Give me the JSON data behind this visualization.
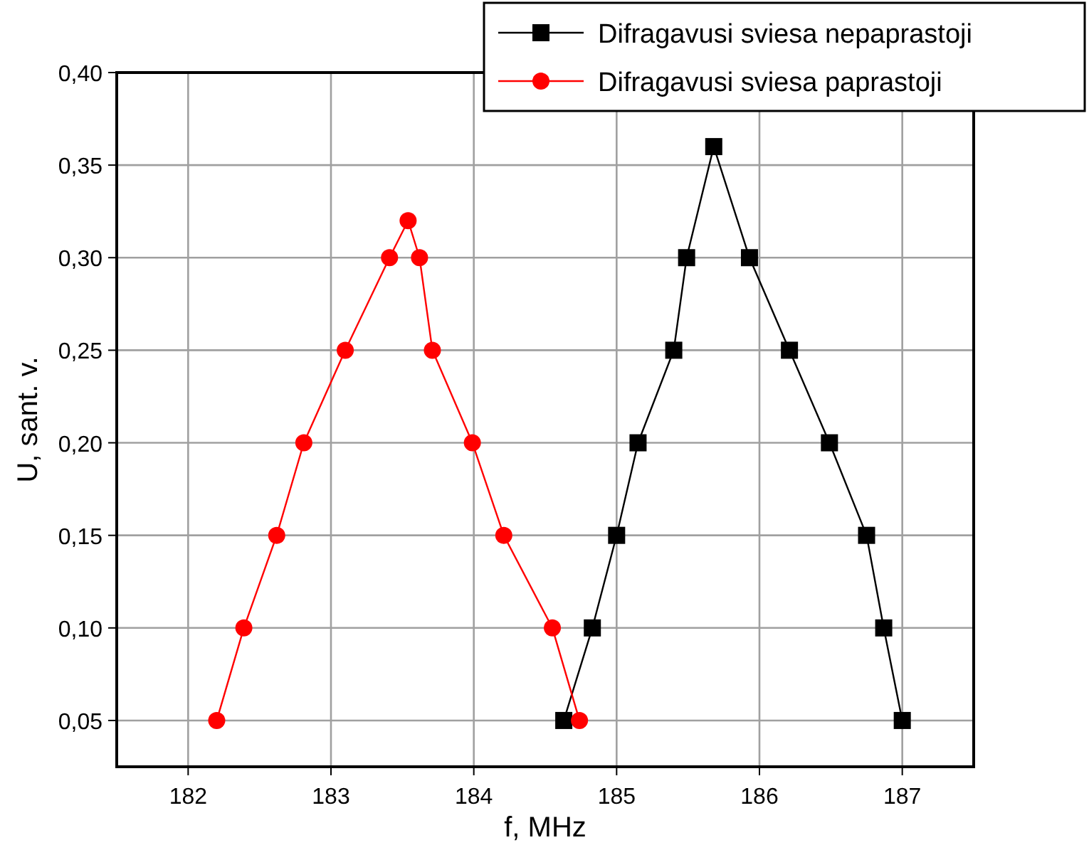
{
  "chart_data": {
    "type": "line",
    "xlabel": "f, MHz",
    "ylabel": "U, sant. v.",
    "xlim": [
      181.5,
      187.5
    ],
    "xticks": [
      182,
      183,
      184,
      185,
      186,
      187
    ],
    "ylim": [
      0.025,
      0.4
    ],
    "yticks": [
      {
        "value": 0.05,
        "label": "0,05"
      },
      {
        "value": 0.1,
        "label": "0,10"
      },
      {
        "value": 0.15,
        "label": "0,15"
      },
      {
        "value": 0.2,
        "label": "0,20"
      },
      {
        "value": 0.25,
        "label": "0,25"
      },
      {
        "value": 0.3,
        "label": "0,30"
      },
      {
        "value": 0.35,
        "label": "0,35"
      },
      {
        "value": 0.4,
        "label": "0,40"
      }
    ],
    "grid": true,
    "legend": "top right",
    "series": [
      {
        "name": "Difragavusi sviesa nepaprastoji",
        "color": "#000000",
        "marker": "square",
        "x": [
          184.63,
          184.83,
          185.0,
          185.15,
          185.4,
          185.49,
          185.68,
          185.93,
          186.21,
          186.49,
          186.75,
          186.87,
          187.0
        ],
        "values": [
          0.05,
          0.1,
          0.15,
          0.2,
          0.25,
          0.3,
          0.36,
          0.3,
          0.25,
          0.2,
          0.15,
          0.1,
          0.05
        ]
      },
      {
        "name": "Difragavusi sviesa paprastoji",
        "color": "#ff0000",
        "marker": "circle",
        "x": [
          182.2,
          182.39,
          182.62,
          182.81,
          183.1,
          183.41,
          183.54,
          183.62,
          183.71,
          183.99,
          184.21,
          184.55,
          184.74
        ],
        "values": [
          0.05,
          0.1,
          0.15,
          0.2,
          0.25,
          0.3,
          0.32,
          0.3,
          0.25,
          0.2,
          0.15,
          0.1,
          0.05
        ]
      }
    ]
  }
}
